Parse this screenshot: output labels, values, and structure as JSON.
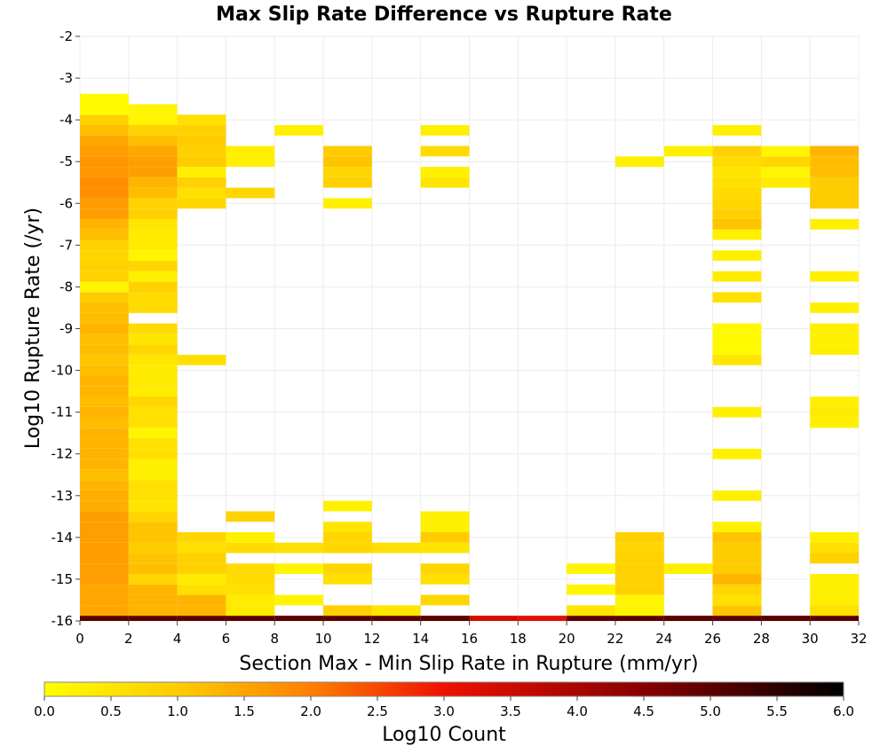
{
  "chart_data": {
    "type": "heatmap",
    "title": "Max Slip Rate Difference vs Rupture Rate",
    "xlabel": "Section Max - Min Slip Rate in Rupture (mm/yr)",
    "ylabel": "Log10 Rupture Rate (/yr)",
    "xlim": [
      0,
      32
    ],
    "ylim": [
      -16,
      -2
    ],
    "x_ticks": [
      "0",
      "2",
      "4",
      "6",
      "8",
      "10",
      "12",
      "14",
      "16",
      "18",
      "20",
      "22",
      "24",
      "26",
      "28",
      "30",
      "32"
    ],
    "y_ticks": [
      "-2",
      "-3",
      "-4",
      "-5",
      "-6",
      "-7",
      "-8",
      "-9",
      "-10",
      "-11",
      "-12",
      "-13",
      "-14",
      "-15",
      "-16"
    ],
    "x_bin_width": 2,
    "y_bin_height": 0.25,
    "grid": true,
    "colorscale": {
      "label": "Log10 Count",
      "min": 0.0,
      "max": 6.0,
      "ticks": [
        "0.0",
        "0.5",
        "1.0",
        "1.5",
        "2.0",
        "2.5",
        "3.0",
        "3.5",
        "4.0",
        "4.5",
        "5.0",
        "5.5",
        "6.0"
      ],
      "stops": [
        [
          0.0,
          "#ffff00"
        ],
        [
          1.0,
          "#ffcc00"
        ],
        [
          2.0,
          "#ff7f00"
        ],
        [
          3.0,
          "#ee1100"
        ],
        [
          4.5,
          "#880000"
        ],
        [
          6.0,
          "#000000"
        ]
      ]
    },
    "columns": [
      {
        "x": 1,
        "cells": [
          [
            -16.0,
            5.0
          ],
          [
            -15.75,
            1.5
          ],
          [
            -15.5,
            1.5
          ],
          [
            -15.25,
            1.5
          ],
          [
            -15.0,
            1.6
          ],
          [
            -14.75,
            1.6
          ],
          [
            -14.5,
            1.6
          ],
          [
            -14.25,
            1.6
          ],
          [
            -14.0,
            1.6
          ],
          [
            -13.75,
            1.6
          ],
          [
            -13.5,
            1.6
          ],
          [
            -13.25,
            1.4
          ],
          [
            -13.0,
            1.4
          ],
          [
            -12.75,
            1.3
          ],
          [
            -12.5,
            1.2
          ],
          [
            -12.25,
            1.3
          ],
          [
            -12.0,
            1.3
          ],
          [
            -11.75,
            1.3
          ],
          [
            -11.5,
            1.3
          ],
          [
            -11.25,
            1.2
          ],
          [
            -11.0,
            1.3
          ],
          [
            -10.75,
            1.2
          ],
          [
            -10.5,
            1.3
          ],
          [
            -10.25,
            1.3
          ],
          [
            -10.0,
            1.2
          ],
          [
            -9.75,
            1.1
          ],
          [
            -9.5,
            1.2
          ],
          [
            -9.25,
            1.2
          ],
          [
            -9.0,
            1.3
          ],
          [
            -8.75,
            1.2
          ],
          [
            -8.5,
            1.2
          ],
          [
            -8.25,
            1.0
          ],
          [
            -8.0,
            0.2
          ],
          [
            -7.75,
            0.9
          ],
          [
            -7.5,
            0.9
          ],
          [
            -7.25,
            0.8
          ],
          [
            -7.0,
            0.9
          ],
          [
            -6.75,
            1.2
          ],
          [
            -6.5,
            1.3
          ],
          [
            -6.25,
            1.6
          ],
          [
            -6.0,
            1.6
          ],
          [
            -5.75,
            1.8
          ],
          [
            -5.5,
            1.8
          ],
          [
            -5.25,
            1.7
          ],
          [
            -5.0,
            1.7
          ],
          [
            -4.75,
            1.6
          ],
          [
            -4.5,
            1.5
          ],
          [
            -4.25,
            1.2
          ],
          [
            -4.0,
            0.9
          ],
          [
            -3.75,
            0.1
          ],
          [
            -3.5,
            0.1
          ]
        ]
      },
      {
        "x": 3,
        "cells": [
          [
            -16.0,
            5.0
          ],
          [
            -15.75,
            1.3
          ],
          [
            -15.5,
            1.3
          ],
          [
            -15.25,
            1.3
          ],
          [
            -15.0,
            0.8
          ],
          [
            -14.75,
            1.2
          ],
          [
            -14.5,
            1.1
          ],
          [
            -14.25,
            1.0
          ],
          [
            -14.0,
            1.1
          ],
          [
            -13.75,
            1.1
          ],
          [
            -13.5,
            0.8
          ],
          [
            -13.25,
            0.5
          ],
          [
            -13.0,
            0.6
          ],
          [
            -12.75,
            0.6
          ],
          [
            -12.5,
            0.3
          ],
          [
            -12.25,
            0.3
          ],
          [
            -12.0,
            0.6
          ],
          [
            -11.75,
            0.6
          ],
          [
            -11.5,
            0.2
          ],
          [
            -11.25,
            0.6
          ],
          [
            -11.0,
            0.6
          ],
          [
            -10.75,
            0.8
          ],
          [
            -10.5,
            0.4
          ],
          [
            -10.25,
            0.4
          ],
          [
            -10.0,
            0.4
          ],
          [
            -9.75,
            0.5
          ],
          [
            -9.5,
            0.8
          ],
          [
            -9.25,
            0.5
          ],
          [
            -9.0,
            0.7
          ],
          [
            -8.5,
            0.7
          ],
          [
            -8.25,
            0.7
          ],
          [
            -8.0,
            0.9
          ],
          [
            -7.75,
            0.3
          ],
          [
            -7.5,
            0.8
          ],
          [
            -7.25,
            0.2
          ],
          [
            -7.0,
            0.4
          ],
          [
            -6.75,
            0.4
          ],
          [
            -6.5,
            0.5
          ],
          [
            -6.25,
            0.9
          ],
          [
            -6.0,
            0.9
          ],
          [
            -5.75,
            1.2
          ],
          [
            -5.5,
            1.3
          ],
          [
            -5.25,
            1.6
          ],
          [
            -5.0,
            1.6
          ],
          [
            -4.75,
            1.5
          ],
          [
            -4.5,
            1.2
          ],
          [
            -4.25,
            0.9
          ],
          [
            -4.0,
            0.2
          ],
          [
            -3.75,
            0.2
          ]
        ]
      },
      {
        "x": 5,
        "cells": [
          [
            -16.0,
            5.0
          ],
          [
            -15.75,
            1.3
          ],
          [
            -15.5,
            1.3
          ],
          [
            -15.25,
            0.6
          ],
          [
            -15.0,
            0.4
          ],
          [
            -14.75,
            0.9
          ],
          [
            -14.5,
            0.9
          ],
          [
            -14.25,
            0.6
          ],
          [
            -14.0,
            0.8
          ],
          [
            -9.75,
            0.6
          ],
          [
            -6.0,
            0.8
          ],
          [
            -5.75,
            0.6
          ],
          [
            -5.5,
            0.9
          ],
          [
            -5.25,
            0.3
          ],
          [
            -5.0,
            1.0
          ],
          [
            -4.75,
            0.9
          ],
          [
            -4.5,
            1.0
          ],
          [
            -4.25,
            0.9
          ],
          [
            -4.0,
            0.6
          ]
        ]
      },
      {
        "x": 7,
        "cells": [
          [
            -16.0,
            5.0
          ],
          [
            -15.75,
            0.4
          ],
          [
            -15.5,
            0.4
          ],
          [
            -15.25,
            0.6
          ],
          [
            -15.0,
            0.7
          ],
          [
            -14.75,
            0.7
          ],
          [
            -14.25,
            0.7
          ],
          [
            -14.0,
            0.3
          ],
          [
            -13.5,
            0.9
          ],
          [
            -5.75,
            0.8
          ],
          [
            -5.0,
            0.3
          ],
          [
            -4.75,
            0.3
          ]
        ]
      },
      {
        "x": 9,
        "cells": [
          [
            -16.0,
            5.0
          ],
          [
            -15.5,
            0.2
          ],
          [
            -14.75,
            0.2
          ],
          [
            -14.25,
            0.6
          ],
          [
            -4.25,
            0.3
          ]
        ]
      },
      {
        "x": 11,
        "cells": [
          [
            -16.0,
            5.0
          ],
          [
            -15.75,
            0.9
          ],
          [
            -15.0,
            0.6
          ],
          [
            -14.75,
            0.8
          ],
          [
            -14.25,
            0.8
          ],
          [
            -14.0,
            0.8
          ],
          [
            -13.75,
            0.5
          ],
          [
            -13.25,
            0.3
          ],
          [
            -6.0,
            0.3
          ],
          [
            -5.5,
            0.9
          ],
          [
            -5.25,
            0.8
          ],
          [
            -5.0,
            1.1
          ],
          [
            -4.75,
            1.0
          ]
        ]
      },
      {
        "x": 13,
        "cells": [
          [
            -16.0,
            5.0
          ],
          [
            -15.75,
            0.5
          ],
          [
            -14.25,
            0.6
          ]
        ]
      },
      {
        "x": 15,
        "cells": [
          [
            -16.0,
            5.0
          ],
          [
            -15.5,
            0.8
          ],
          [
            -15.0,
            0.6
          ],
          [
            -14.75,
            0.8
          ],
          [
            -14.25,
            0.5
          ],
          [
            -14.0,
            1.0
          ],
          [
            -13.75,
            0.3
          ],
          [
            -13.5,
            0.3
          ],
          [
            -5.5,
            0.5
          ],
          [
            -5.25,
            0.3
          ],
          [
            -4.75,
            0.7
          ],
          [
            -4.25,
            0.3
          ]
        ]
      },
      {
        "x": 17,
        "cells": [
          [
            -16.0,
            3.4
          ]
        ]
      },
      {
        "x": 19,
        "cells": [
          [
            -16.0,
            3.2
          ]
        ]
      },
      {
        "x": 21,
        "cells": [
          [
            -16.0,
            5.0
          ],
          [
            -15.75,
            0.5
          ],
          [
            -15.25,
            0.2
          ],
          [
            -14.75,
            0.2
          ]
        ]
      },
      {
        "x": 23,
        "cells": [
          [
            -16.0,
            5.0
          ],
          [
            -15.75,
            0.2
          ],
          [
            -15.5,
            0.2
          ],
          [
            -15.25,
            0.9
          ],
          [
            -15.0,
            0.9
          ],
          [
            -14.75,
            0.9
          ],
          [
            -14.5,
            0.9
          ],
          [
            -14.25,
            0.8
          ],
          [
            -14.0,
            0.9
          ],
          [
            -5.0,
            0.3
          ]
        ]
      },
      {
        "x": 25,
        "cells": [
          [
            -16.0,
            5.0
          ],
          [
            -14.75,
            0.3
          ],
          [
            -4.75,
            0.3
          ]
        ]
      },
      {
        "x": 27,
        "cells": [
          [
            -16.0,
            5.0
          ],
          [
            -15.75,
            1.1
          ],
          [
            -15.5,
            0.6
          ],
          [
            -15.25,
            0.8
          ],
          [
            -15.0,
            1.3
          ],
          [
            -14.75,
            1.0
          ],
          [
            -14.5,
            1.0
          ],
          [
            -14.25,
            1.0
          ],
          [
            -14.0,
            1.1
          ],
          [
            -13.75,
            0.3
          ],
          [
            -13.0,
            0.3
          ],
          [
            -12.0,
            0.3
          ],
          [
            -11.0,
            0.3
          ],
          [
            -9.75,
            0.5
          ],
          [
            -9.5,
            0.1
          ],
          [
            -9.25,
            0.1
          ],
          [
            -9.0,
            0.1
          ],
          [
            -8.25,
            0.6
          ],
          [
            -7.75,
            0.4
          ],
          [
            -7.25,
            0.3
          ],
          [
            -6.75,
            0.3
          ],
          [
            -6.5,
            1.1
          ],
          [
            -6.25,
            0.9
          ],
          [
            -6.0,
            0.8
          ],
          [
            -5.75,
            0.7
          ],
          [
            -5.5,
            0.6
          ],
          [
            -5.25,
            0.5
          ],
          [
            -5.0,
            0.7
          ],
          [
            -4.75,
            0.9
          ],
          [
            -4.25,
            0.3
          ]
        ]
      },
      {
        "x": 29,
        "cells": [
          [
            -16.0,
            5.0
          ],
          [
            -5.5,
            0.4
          ],
          [
            -5.25,
            0.2
          ],
          [
            -5.0,
            0.8
          ],
          [
            -4.75,
            0.2
          ]
        ]
      },
      {
        "x": 31,
        "cells": [
          [
            -16.0,
            5.0
          ],
          [
            -15.75,
            0.6
          ],
          [
            -15.5,
            0.3
          ],
          [
            -15.25,
            0.3
          ],
          [
            -15.0,
            0.3
          ],
          [
            -14.5,
            0.9
          ],
          [
            -14.25,
            0.6
          ],
          [
            -14.0,
            0.3
          ],
          [
            -11.25,
            0.3
          ],
          [
            -11.0,
            0.4
          ],
          [
            -10.75,
            0.3
          ],
          [
            -9.5,
            0.3
          ],
          [
            -9.25,
            0.3
          ],
          [
            -9.0,
            0.3
          ],
          [
            -8.5,
            0.3
          ],
          [
            -7.75,
            0.3
          ],
          [
            -6.5,
            0.3
          ],
          [
            -6.0,
            1.0
          ],
          [
            -5.75,
            1.0
          ],
          [
            -5.5,
            1.0
          ],
          [
            -5.25,
            1.2
          ],
          [
            -5.0,
            1.2
          ],
          [
            -4.75,
            1.3
          ]
        ]
      }
    ]
  }
}
